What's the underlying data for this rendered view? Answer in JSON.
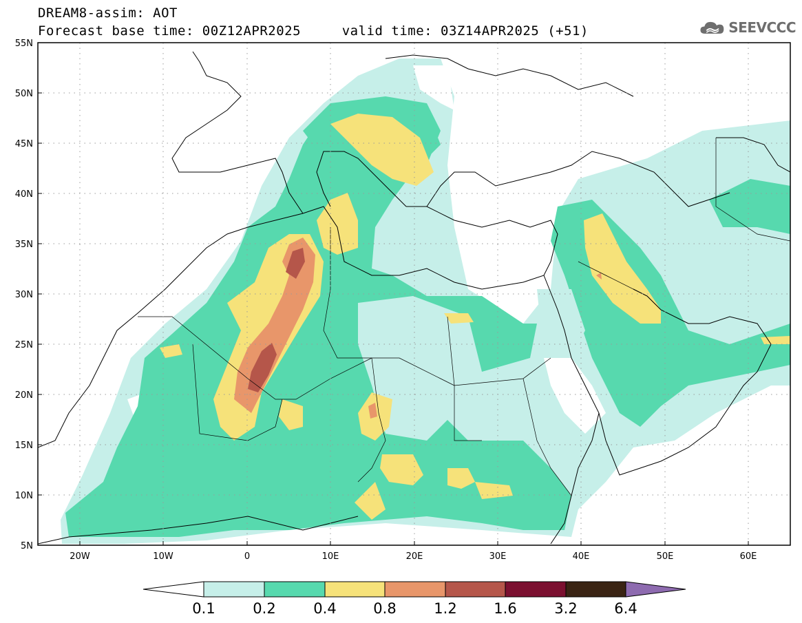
{
  "header": {
    "title_line1": "DREAM8-assim: AOT",
    "title_line2": "Forecast base time: 00Z12APR2025     valid time: 03Z14APR2025 (+51)"
  },
  "logo": {
    "text": "SEEVCCC",
    "icon": "cloud-icon"
  },
  "map": {
    "variable": "AOT",
    "lat_range": [
      5,
      55
    ],
    "lon_range": [
      -25,
      65
    ],
    "grid": "dotted",
    "lat_labels": [
      "55N",
      "50N",
      "45N",
      "40N",
      "35N",
      "30N",
      "25N",
      "20N",
      "15N",
      "10N",
      "5N"
    ],
    "lon_labels": [
      "20W",
      "10W",
      "0",
      "10E",
      "20E",
      "30E",
      "40E",
      "50E",
      "60E"
    ]
  },
  "colorbar": {
    "levels": [
      "0.1",
      "0.2",
      "0.4",
      "0.8",
      "1.2",
      "1.6",
      "3.2",
      "6.4"
    ],
    "colors": [
      "#c6efe9",
      "#57d9ae",
      "#f6e27a",
      "#e8966a",
      "#b5564a",
      "#7b1030",
      "#3a2414",
      "#8e6bb0"
    ]
  }
}
